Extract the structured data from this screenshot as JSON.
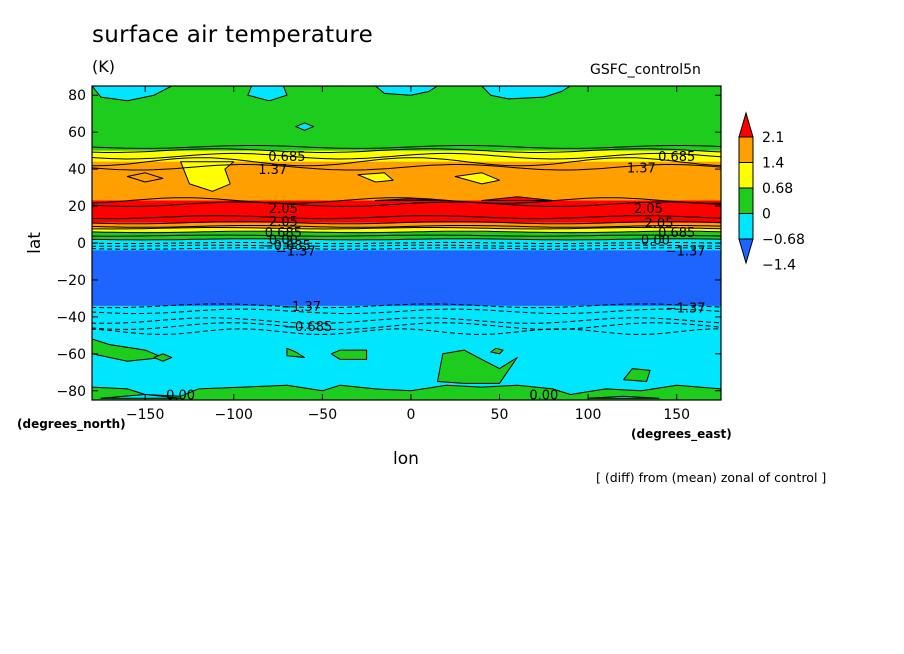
{
  "header": {
    "title": "surface air temperature",
    "units": "(K)",
    "experiment": "GSFC_control5n"
  },
  "footer_note": "[ (diff) from (mean) zonal of control ]",
  "chart_data": {
    "type": "heatmap",
    "title": "surface air temperature",
    "xlabel": "lon",
    "ylabel": "lat",
    "x_unit": "(degrees_east)",
    "y_unit": "(degrees_north)",
    "xlim": [
      -180,
      175
    ],
    "ylim": [
      -85,
      85
    ],
    "x_ticks": [
      -150,
      -100,
      -50,
      0,
      50,
      100,
      150
    ],
    "x_tick_labels": [
      "−150",
      "−100",
      "−50",
      "0",
      "50",
      "100",
      "150"
    ],
    "y_ticks": [
      -80,
      -60,
      -40,
      -20,
      0,
      20,
      40,
      60,
      80
    ],
    "y_tick_labels": [
      "−80",
      "−60",
      "−40",
      "−20",
      "0",
      "20",
      "40",
      "60",
      "80"
    ],
    "colorbar": {
      "levels": [
        -1.4,
        -0.68,
        0,
        0.68,
        1.4,
        2.1
      ],
      "labels": [
        "−1.4",
        "−0.68",
        "0",
        "0.68",
        "1.4",
        "2.1"
      ],
      "colors": [
        "#1e64ff",
        "#00e6ff",
        "#1ecc1e",
        "#ffff00",
        "#ffa000",
        "#ff0000"
      ],
      "under_color": "#1e64ff",
      "over_color": "#ff0000"
    },
    "zonal_bands": [
      {
        "lat_min": 50,
        "lat_max": 85,
        "value_class": "0 to 0.68",
        "color": "#1ecc1e"
      },
      {
        "lat_min": 44,
        "lat_max": 50,
        "value_class": "0.68 to 1.4",
        "color": "#ffff00"
      },
      {
        "lat_min": 23,
        "lat_max": 44,
        "value_class": "1.4 to 2.1",
        "color": "#ffa000"
      },
      {
        "lat_min": 11,
        "lat_max": 23,
        "value_class": "> 2.1",
        "color": "#ff0000"
      },
      {
        "lat_min": 8,
        "lat_max": 11,
        "value_class": "1.4 to 2.1",
        "color": "#ffa000"
      },
      {
        "lat_min": 6,
        "lat_max": 8,
        "value_class": "0.68 to 1.4",
        "color": "#ffff00"
      },
      {
        "lat_min": 2,
        "lat_max": 6,
        "value_class": "0 to 0.68",
        "color": "#1ecc1e"
      },
      {
        "lat_min": -4,
        "lat_max": 2,
        "value_class": "-0.68 to 0",
        "color": "#00e6ff"
      },
      {
        "lat_min": -34,
        "lat_max": -4,
        "value_class": "< -1.4",
        "color": "#1e64ff"
      },
      {
        "lat_min": -85,
        "lat_max": -34,
        "value_class": "-0.68 to 0",
        "color": "#00e6ff"
      }
    ],
    "contour_labels": [
      {
        "text": "0.685",
        "lon": -70,
        "lat": 47
      },
      {
        "text": "0.685",
        "lon": 150,
        "lat": 47
      },
      {
        "text": "1.37",
        "lon": -78,
        "lat": 40
      },
      {
        "text": "1.37",
        "lon": 130,
        "lat": 41
      },
      {
        "text": "2.05",
        "lon": -72,
        "lat": 19
      },
      {
        "text": "2.05",
        "lon": 134,
        "lat": 19
      },
      {
        "text": "2.05",
        "lon": -72,
        "lat": 12
      },
      {
        "text": "2.05",
        "lon": 140,
        "lat": 11
      },
      {
        "text": "0.685",
        "lon": -72,
        "lat": 6
      },
      {
        "text": "0.685",
        "lon": 150,
        "lat": 6
      },
      {
        "text": "0.00",
        "lon": -72,
        "lat": 2
      },
      {
        "text": "0.00",
        "lon": 138,
        "lat": 2
      },
      {
        "text": "−0.685",
        "lon": -70,
        "lat": -1
      },
      {
        "text": "−1.37",
        "lon": -65,
        "lat": -4
      },
      {
        "text": "−1.37",
        "lon": 155,
        "lat": -4
      },
      {
        "text": "−1.37",
        "lon": -62,
        "lat": -34
      },
      {
        "text": "−1.37",
        "lon": 155,
        "lat": -35
      },
      {
        "text": "−0.685",
        "lon": -58,
        "lat": -45
      },
      {
        "text": "0.00",
        "lon": -130,
        "lat": -82
      },
      {
        "text": "0.00",
        "lon": 75,
        "lat": -82
      }
    ]
  }
}
